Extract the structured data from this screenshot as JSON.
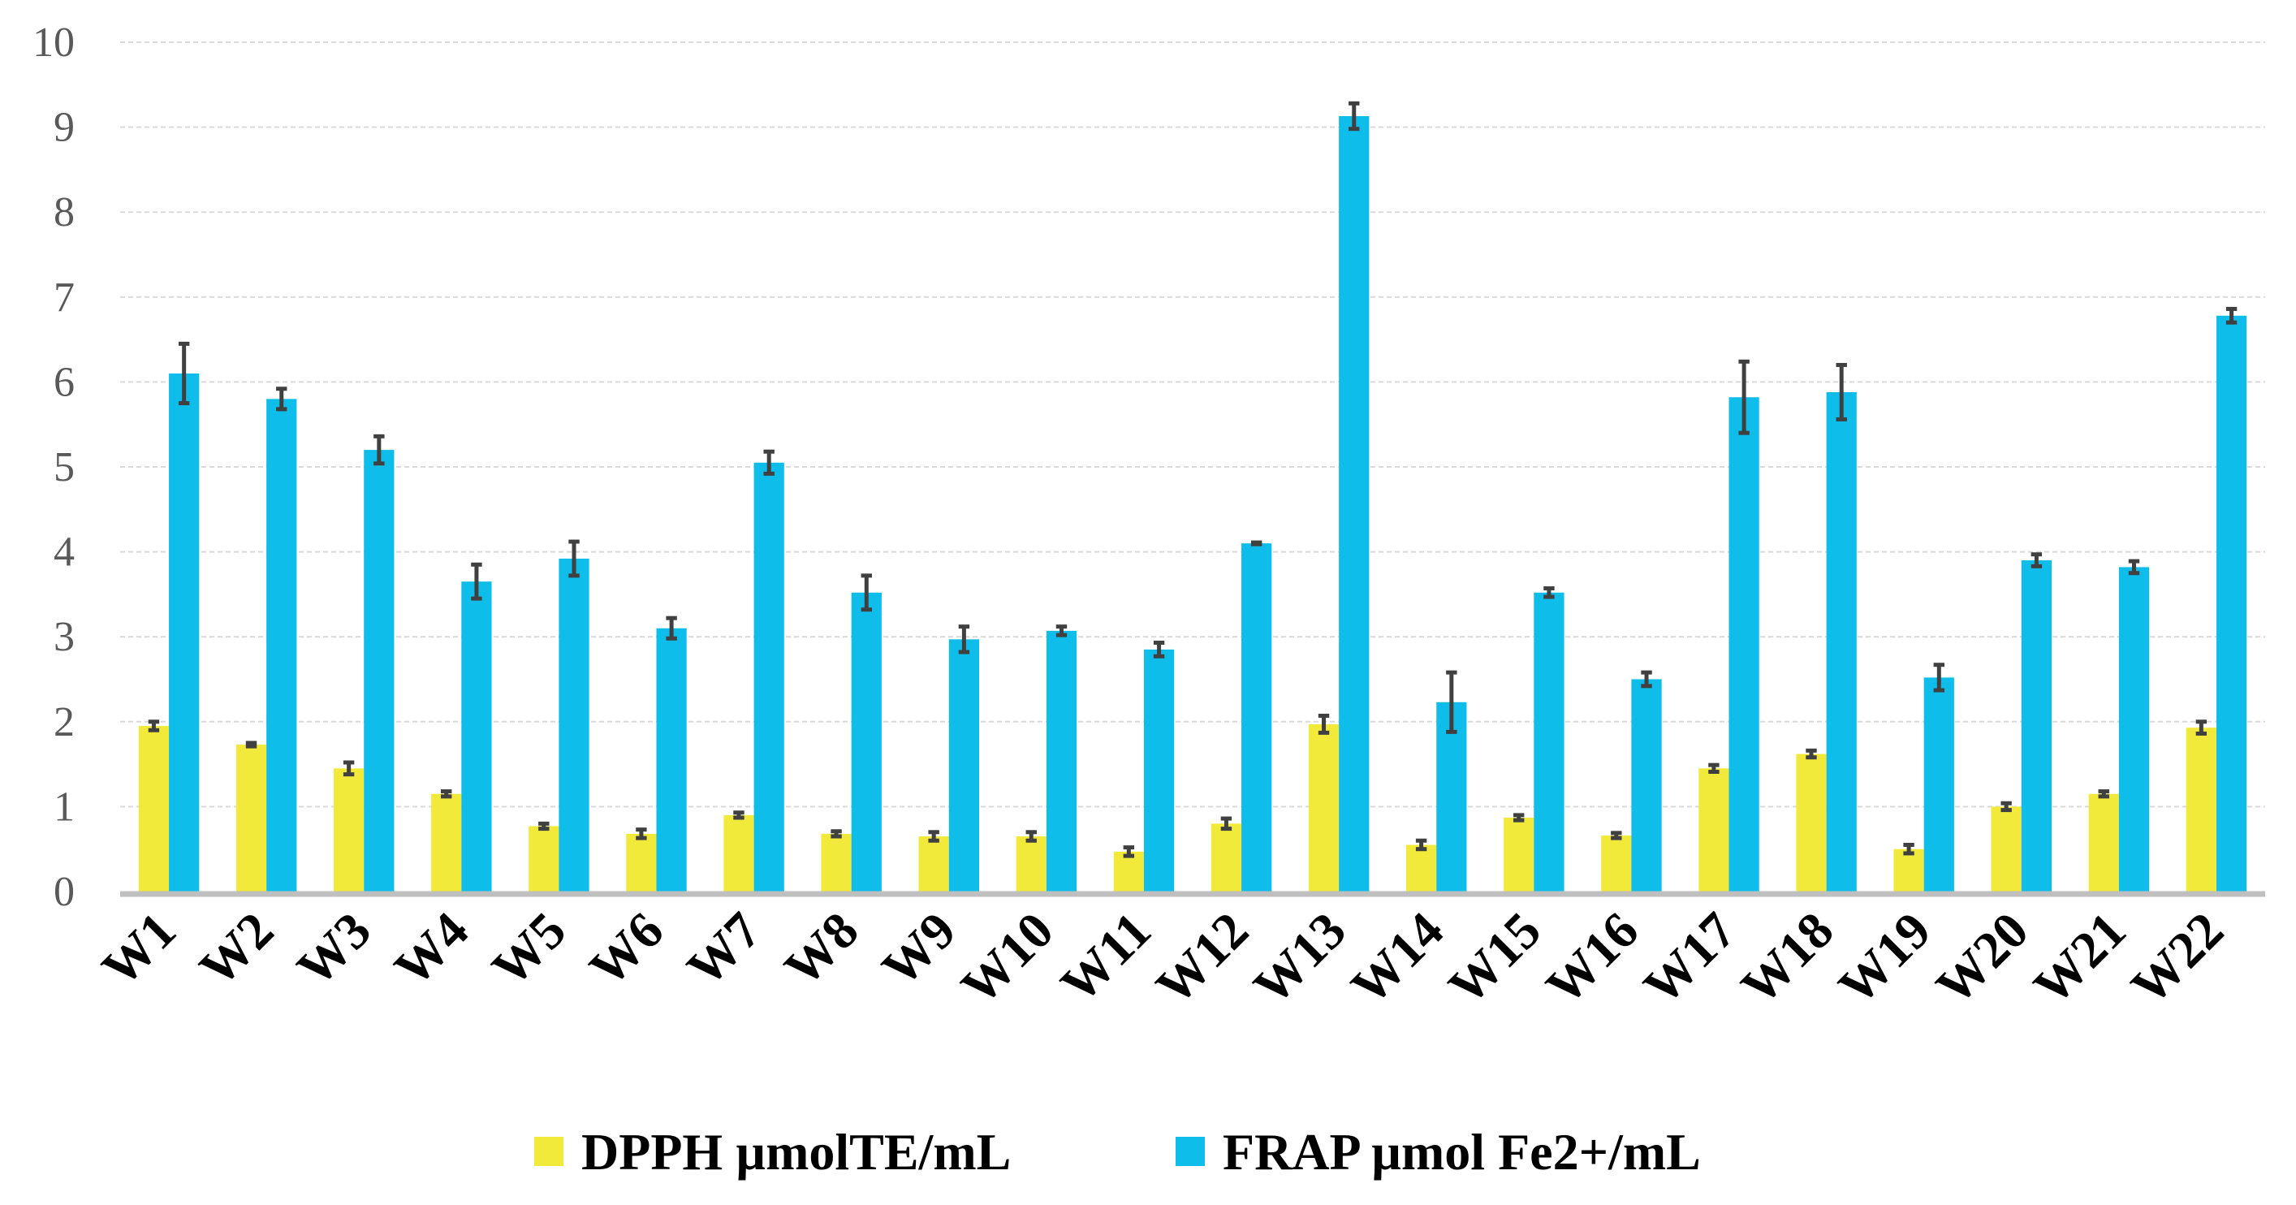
{
  "chart_data": {
    "type": "bar",
    "title": "",
    "xlabel": "",
    "ylabel": "",
    "ylim": [
      0,
      10
    ],
    "yticks": [
      "0",
      "1",
      "2",
      "3",
      "4",
      "5",
      "6",
      "7",
      "8",
      "9",
      "10"
    ],
    "grid": true,
    "legend_position": "bottom",
    "categories": [
      "W1",
      "W2",
      "W3",
      "W4",
      "W5",
      "W6",
      "W7",
      "W8",
      "W9",
      "W10",
      "W11",
      "W12",
      "W13",
      "W14",
      "W15",
      "W16",
      "W17",
      "W18",
      "W19",
      "W20",
      "W21",
      "W22"
    ],
    "series": [
      {
        "name": "DPPH µmolTE/mL",
        "color": "#F2EA3B",
        "values": [
          1.95,
          1.73,
          1.45,
          1.15,
          0.77,
          0.68,
          0.9,
          0.68,
          0.65,
          0.65,
          0.47,
          0.8,
          1.97,
          0.55,
          0.87,
          0.66,
          1.45,
          1.62,
          0.5,
          1.0,
          1.15,
          1.93
        ],
        "errors": [
          0.05,
          0.02,
          0.07,
          0.03,
          0.03,
          0.05,
          0.03,
          0.03,
          0.05,
          0.05,
          0.05,
          0.06,
          0.1,
          0.05,
          0.03,
          0.03,
          0.04,
          0.04,
          0.05,
          0.04,
          0.03,
          0.07
        ]
      },
      {
        "name": "FRAP µmol Fe2+/mL",
        "color": "#0FBDEA",
        "values": [
          6.1,
          5.8,
          5.2,
          3.65,
          3.92,
          3.1,
          5.05,
          3.52,
          2.97,
          3.07,
          2.85,
          4.1,
          9.13,
          2.23,
          3.52,
          2.5,
          5.82,
          5.88,
          2.52,
          3.9,
          3.82,
          6.78
        ],
        "errors": [
          0.35,
          0.12,
          0.16,
          0.2,
          0.2,
          0.12,
          0.13,
          0.2,
          0.15,
          0.05,
          0.08,
          0.01,
          0.15,
          0.35,
          0.05,
          0.08,
          0.42,
          0.32,
          0.15,
          0.07,
          0.07,
          0.08
        ]
      }
    ]
  }
}
